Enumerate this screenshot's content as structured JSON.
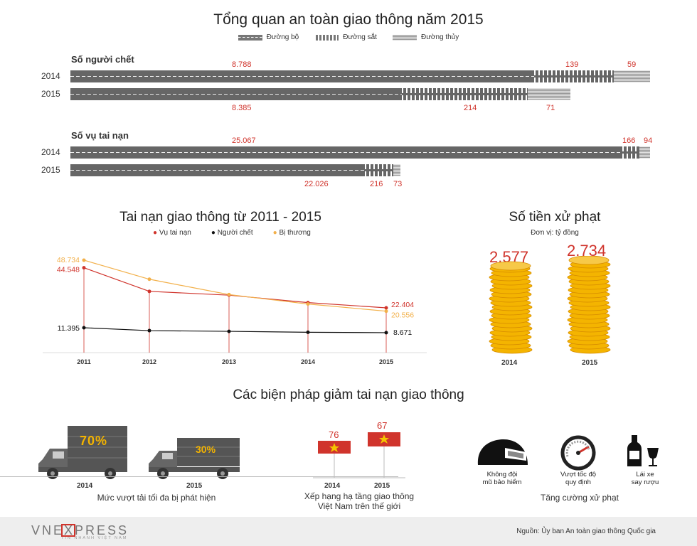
{
  "title": "Tổng quan an toàn giao thông năm 2015",
  "legend": {
    "road": "Đường bộ",
    "rail": "Đường sắt",
    "water": "Đường thủy"
  },
  "deaths": {
    "label": "Số người chết",
    "y2014": {
      "year": "2014",
      "road": "8.788",
      "rail": "139",
      "water": "59"
    },
    "y2015": {
      "year": "2015",
      "road": "8.385",
      "rail": "214",
      "water": "71"
    }
  },
  "accidents": {
    "label": "Số vụ tai nạn",
    "y2014": {
      "year": "2014",
      "road": "25.067",
      "rail": "166",
      "water": "94"
    },
    "y2015": {
      "year": "2015",
      "road": "22.026",
      "rail": "216",
      "water": "73"
    }
  },
  "line_section": {
    "title": "Tai nạn giao thông từ 2011 - 2015",
    "legend": {
      "accidents": "Vụ tai nạn",
      "deaths": "Người chết",
      "injured": "Bị thương"
    }
  },
  "chart_data": {
    "type": "line",
    "title": "Tai nạn giao thông từ 2011 - 2015",
    "x": [
      "2011",
      "2012",
      "2013",
      "2014",
      "2015"
    ],
    "series": [
      {
        "name": "Vụ tai nạn",
        "color": "#d0342c",
        "values": [
          44548,
          31500,
          29400,
          25300,
          22404
        ]
      },
      {
        "name": "Người chết",
        "color": "#111111",
        "values": [
          11395,
          9800,
          9400,
          8900,
          8671
        ]
      },
      {
        "name": "Bị thương",
        "color": "#f2b04a",
        "values": [
          48734,
          38200,
          29700,
          24500,
          20556
        ]
      }
    ],
    "labels": {
      "acc_start": "44.548",
      "acc_end": "22.404",
      "inj_start": "48.734",
      "inj_end": "20.556",
      "dth_start": "11.395",
      "dth_end": "8.671"
    },
    "ylim": [
      0,
      55000
    ]
  },
  "fines": {
    "title": "Số tiền xử phạt",
    "unit": "Đơn vị: tỷ đồng",
    "v2014": "2.577",
    "v2015": "2.734",
    "y2014": "2014",
    "y2015": "2015",
    "coin_color": "#f4b400"
  },
  "measures": {
    "title": "Các biện pháp giảm tai nạn giao thông",
    "overload": {
      "p2014": "70%",
      "p2015": "30%",
      "y2014": "2014",
      "y2015": "2015",
      "caption": "Mức vượt tải tối đa bị phát hiện"
    },
    "ranking": {
      "r2014": "76",
      "r2015": "67",
      "y2014": "2014",
      "y2015": "2015",
      "caption1": "Xếp hạng hạ tầng giao thông",
      "caption2": "Việt Nam trên thế giới"
    },
    "fines_icons": {
      "helmet": "Không đội",
      "helmet2": "mũ bảo hiểm",
      "speed": "Vượt tốc độ",
      "speed2": "quy định",
      "drink": "Lái xe",
      "drink2": "say rượu",
      "caption": "Tăng cường xử phạt"
    }
  },
  "footer": {
    "brand": "VNEXPRESS",
    "tagline": "TIN NHANH VIỆT NAM",
    "source": "Nguồn: Ủy ban An toàn giao thông Quốc gia"
  }
}
